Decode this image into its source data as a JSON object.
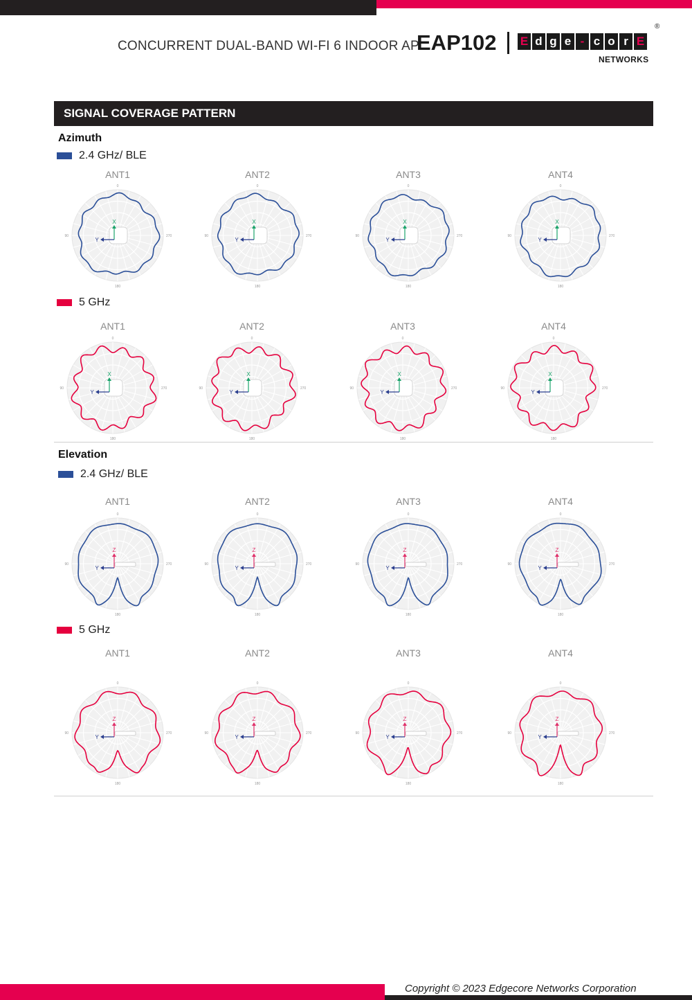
{
  "header": {
    "subtitle": "CONCURRENT DUAL-BAND WI-FI 6 INDOOR AP",
    "model": "EAP102",
    "logo_letters": [
      "E",
      "d",
      "g",
      "e",
      "-",
      "c",
      "o",
      "r",
      "E"
    ],
    "logo_sub": "NETWORKS",
    "registered": "®"
  },
  "section": {
    "title": "SIGNAL COVERAGE PATTERN"
  },
  "colors": {
    "accent_red": "#e5004f",
    "band_24": "#2b4f98",
    "band_5": "#e5003e",
    "dark": "#231f20"
  },
  "azimuth": {
    "heading": "Azimuth",
    "band24": {
      "legend": "2.4 GHz/ BLE",
      "antennas": [
        {
          "label": "ANT1",
          "axis_v": "X",
          "axis_h": "Y"
        },
        {
          "label": "ANT2",
          "axis_v": "X",
          "axis_h": "Y"
        },
        {
          "label": "ANT3",
          "axis_v": "X",
          "axis_h": "Y"
        },
        {
          "label": "ANT4",
          "axis_v": "X",
          "axis_h": "Y"
        }
      ]
    },
    "band5": {
      "legend": "5 GHz",
      "antennas": [
        {
          "label": "ANT1",
          "axis_v": "X",
          "axis_h": "Y"
        },
        {
          "label": "ANT2",
          "axis_v": "X",
          "axis_h": "Y"
        },
        {
          "label": "ANT3",
          "axis_v": "X",
          "axis_h": "Y"
        },
        {
          "label": "ANT4",
          "axis_v": "X",
          "axis_h": "Y"
        }
      ]
    }
  },
  "elevation": {
    "heading": "Elevation",
    "band24": {
      "legend": "2.4 GHz/ BLE",
      "antennas": [
        {
          "label": "ANT1",
          "axis_v": "Z",
          "axis_h": "Y"
        },
        {
          "label": "ANT2",
          "axis_v": "Z",
          "axis_h": "Y"
        },
        {
          "label": "ANT3",
          "axis_v": "Z",
          "axis_h": "Y"
        },
        {
          "label": "ANT4",
          "axis_v": "Z",
          "axis_h": "Y"
        }
      ]
    },
    "band5": {
      "legend": "5 GHz",
      "antennas": [
        {
          "label": "ANT1",
          "axis_v": "Z",
          "axis_h": "Y"
        },
        {
          "label": "ANT2",
          "axis_v": "Z",
          "axis_h": "Y"
        },
        {
          "label": "ANT3",
          "axis_v": "Z",
          "axis_h": "Y"
        },
        {
          "label": "ANT4",
          "axis_v": "Z",
          "axis_h": "Y"
        }
      ]
    }
  },
  "polar_ticks": {
    "top": "0",
    "left": "90",
    "right": "270",
    "bottom": "180"
  },
  "footer": {
    "copyright": "Copyright © 2023 Edgecore Networks Corporation"
  }
}
